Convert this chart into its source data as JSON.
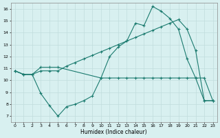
{
  "xlabel": "Humidex (Indice chaleur)",
  "ylabel": "",
  "bg_color": "#d8f0f0",
  "grid_color": "#c0dcdc",
  "line_color": "#1a7a6e",
  "xlim": [
    -0.5,
    23.5
  ],
  "ylim": [
    6.5,
    16.5
  ],
  "xticks": [
    0,
    1,
    2,
    3,
    4,
    5,
    6,
    7,
    8,
    9,
    10,
    11,
    12,
    13,
    14,
    15,
    16,
    17,
    18,
    19,
    20,
    21,
    22,
    23
  ],
  "yticks": [
    7,
    8,
    9,
    10,
    11,
    12,
    13,
    14,
    15,
    16
  ],
  "line1_x": [
    0,
    1,
    2,
    3,
    4,
    5,
    10,
    11,
    12,
    13,
    14,
    15,
    16,
    17,
    18,
    19,
    20,
    21,
    22,
    23
  ],
  "line1_y": [
    10.8,
    10.5,
    10.5,
    11.1,
    11.1,
    11.1,
    10.2,
    12.0,
    12.8,
    13.3,
    14.8,
    14.6,
    16.2,
    15.8,
    15.2,
    14.3,
    11.8,
    10.2,
    8.3,
    8.3
  ],
  "line2_x": [
    0,
    1,
    2,
    3,
    4,
    5,
    6,
    7,
    8,
    9,
    10,
    11,
    12,
    13,
    14,
    15,
    16,
    17,
    18,
    19,
    20,
    21,
    22,
    23
  ],
  "line2_y": [
    10.8,
    10.5,
    10.5,
    10.8,
    10.8,
    10.8,
    11.2,
    11.5,
    11.8,
    12.1,
    12.4,
    12.7,
    13.0,
    13.3,
    13.6,
    13.9,
    14.2,
    14.5,
    14.8,
    15.1,
    14.3,
    12.5,
    8.3,
    8.3
  ],
  "line3_x": [
    0,
    1,
    2,
    3,
    4,
    5,
    6,
    7,
    8,
    9,
    10,
    11,
    12,
    13,
    14,
    15,
    16,
    17,
    18,
    19,
    20,
    21,
    22,
    23
  ],
  "line3_y": [
    10.8,
    10.5,
    10.5,
    8.9,
    7.9,
    7.0,
    7.8,
    8.0,
    8.3,
    8.7,
    10.2,
    10.2,
    10.2,
    10.2,
    10.2,
    10.2,
    10.2,
    10.2,
    10.2,
    10.2,
    10.2,
    10.2,
    10.2,
    8.3
  ],
  "marker": "+"
}
